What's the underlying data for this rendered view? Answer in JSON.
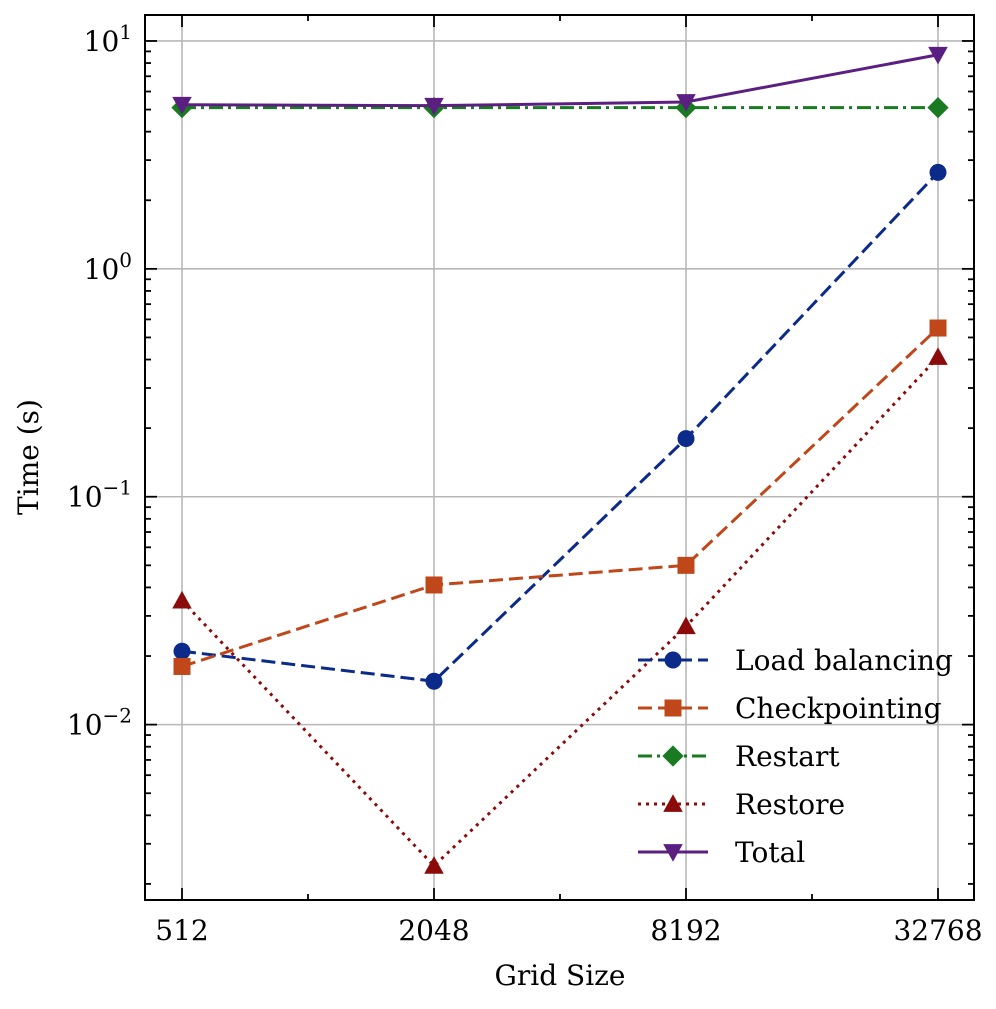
{
  "chart_data": {
    "type": "line",
    "xscale": "log2",
    "yscale": "log10",
    "x": [
      512,
      2048,
      8192,
      32768
    ],
    "x_tick_labels": [
      "512",
      "2048",
      "8192",
      "32768"
    ],
    "xlabel": "Grid Size",
    "ylabel": "Time (s)",
    "ylim": [
      0.0017,
      13
    ],
    "y_ticks": [
      {
        "value": 0.01,
        "base": "10",
        "exp": "−2"
      },
      {
        "value": 0.1,
        "base": "10",
        "exp": "−1"
      },
      {
        "value": 1,
        "base": "10",
        "exp": "0"
      },
      {
        "value": 10,
        "base": "10",
        "exp": "1"
      }
    ],
    "grid": true,
    "legend_position": "bottom-right",
    "series": [
      {
        "name": "Load balancing",
        "values": [
          0.021,
          0.0155,
          0.18,
          2.65
        ],
        "color": "#0c2a8a",
        "dash": "dashed",
        "marker": "circle"
      },
      {
        "name": "Checkpointing",
        "values": [
          0.018,
          0.041,
          0.05,
          0.55
        ],
        "color": "#c0471a",
        "dash": "dashed",
        "marker": "square"
      },
      {
        "name": "Restart",
        "values": [
          5.1,
          5.1,
          5.1,
          5.1
        ],
        "color": "#1a7a22",
        "dash": "dashdot",
        "marker": "diamond"
      },
      {
        "name": "Restore",
        "values": [
          0.035,
          0.0024,
          0.027,
          0.41
        ],
        "color": "#8b0a0a",
        "dash": "dotted",
        "marker": "triangle-up"
      },
      {
        "name": "Total",
        "values": [
          5.25,
          5.2,
          5.4,
          8.7
        ],
        "color": "#5b1f82",
        "dash": "solid",
        "marker": "triangle-down"
      }
    ]
  }
}
